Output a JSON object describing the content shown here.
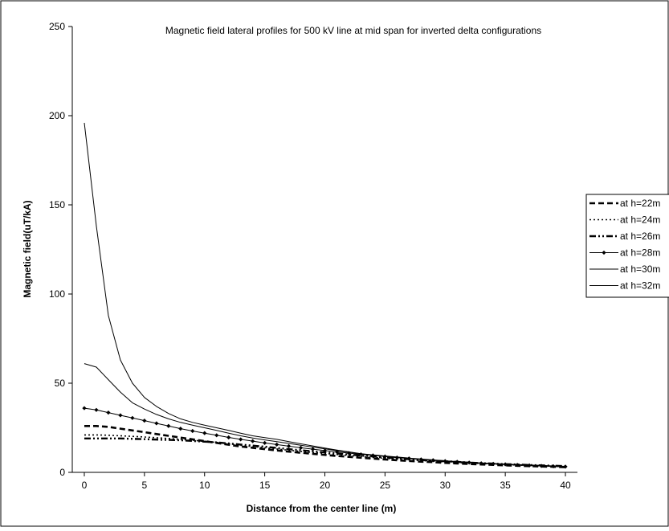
{
  "chart_data": {
    "type": "line",
    "title": "Magnetic field lateral profiles for 500  kV line at mid span for inverted delta configurations",
    "xlabel": "Distance from the center line (m)",
    "ylabel": "Magnetic field(uT/kA)",
    "xlim": [
      -1,
      41
    ],
    "ylim": [
      0,
      250
    ],
    "x_ticks": [
      0,
      5,
      10,
      15,
      20,
      25,
      30,
      35,
      40
    ],
    "y_ticks": [
      0,
      50,
      100,
      150,
      200,
      250
    ],
    "grid": false,
    "legend_position": "right",
    "x": [
      0,
      1,
      2,
      3,
      4,
      5,
      6,
      7,
      8,
      9,
      10,
      11,
      12,
      13,
      14,
      15,
      16,
      17,
      18,
      19,
      20,
      21,
      22,
      23,
      24,
      25,
      26,
      27,
      28,
      29,
      30,
      31,
      32,
      33,
      34,
      35,
      36,
      37,
      38,
      39,
      40
    ],
    "series": [
      {
        "name": "at h=22m",
        "values": [
          26,
          26,
          25.5,
          24.5,
          23.5,
          22.5,
          21.5,
          20.5,
          19.5,
          18.5,
          17.5,
          16.5,
          15.5,
          14.5,
          13.8,
          13,
          12.3,
          11.6,
          11,
          10.4,
          9.8,
          9.2,
          8.7,
          8.2,
          7.7,
          7.2,
          6.8,
          6.4,
          6,
          5.7,
          5.3,
          5,
          4.7,
          4.4,
          4.2,
          3.9,
          3.7,
          3.5,
          3.3,
          3.1,
          2.9
        ]
      },
      {
        "name": "at h=24m",
        "values": [
          21,
          21,
          20.8,
          20.5,
          20.2,
          19.8,
          19.4,
          19,
          18.5,
          18,
          17.4,
          16.8,
          16,
          15.2,
          14.5,
          13.8,
          13.1,
          12.4,
          11.8,
          11.2,
          10.6,
          10,
          9.4,
          8.9,
          8.4,
          7.9,
          7.4,
          7,
          6.6,
          6.2,
          5.8,
          5.5,
          5.2,
          4.9,
          4.6,
          4.3,
          4.1,
          3.8,
          3.6,
          3.4,
          3.2
        ]
      },
      {
        "name": "at h=26m",
        "values": [
          19,
          19,
          19,
          19,
          18.8,
          18.6,
          18.4,
          18.2,
          18,
          17.6,
          17.2,
          16.8,
          16.2,
          15.6,
          15,
          14.4,
          13.7,
          13,
          12.4,
          11.8,
          11.2,
          10.6,
          10,
          9.4,
          8.9,
          8.4,
          7.9,
          7.4,
          7,
          6.6,
          6.2,
          5.9,
          5.5,
          5.2,
          4.9,
          4.6,
          4.4,
          4.1,
          3.9,
          3.7,
          3.5
        ]
      },
      {
        "name": "at h=28m",
        "values": [
          36,
          35,
          33.5,
          32,
          30.5,
          29,
          27.5,
          26,
          24.5,
          23.2,
          22,
          20.8,
          19.6,
          18.5,
          17.5,
          16.5,
          15.6,
          14.7,
          13.8,
          13,
          12.2,
          11.5,
          10.8,
          10.1,
          9.5,
          8.9,
          8.3,
          7.8,
          7.3,
          6.8,
          6.3,
          5.9,
          5.5,
          5.1,
          4.8,
          4.5,
          4.2,
          3.9,
          3.6,
          3.4,
          3.2
        ]
      },
      {
        "name": "at h=30m",
        "values": [
          196,
          138,
          88,
          63,
          50,
          42,
          37,
          33,
          30,
          28,
          26.5,
          25,
          23.5,
          22,
          20.5,
          19.5,
          18.5,
          17.2,
          16,
          14.8,
          13.6,
          12.5,
          11.5,
          10.5,
          9.8,
          9.2,
          8.6,
          8,
          7.5,
          7,
          6.5,
          6.1,
          5.7,
          5.3,
          5,
          4.7,
          4.4,
          4.1,
          3.9,
          3.6,
          3.4
        ]
      },
      {
        "name": "at h=32m",
        "values": [
          61,
          59,
          52,
          45,
          39,
          35.5,
          32.5,
          30,
          28,
          26.5,
          25,
          23.5,
          22,
          20.5,
          19.3,
          18.2,
          17.2,
          16.2,
          15.2,
          14.2,
          13.2,
          12.2,
          11.3,
          10.4,
          9.6,
          8.9,
          8.3,
          7.7,
          7.2,
          6.7,
          6.2,
          5.8,
          5.4,
          5,
          4.7,
          4.4,
          4.1,
          3.8,
          3.6,
          3.4,
          3.2
        ]
      }
    ]
  }
}
